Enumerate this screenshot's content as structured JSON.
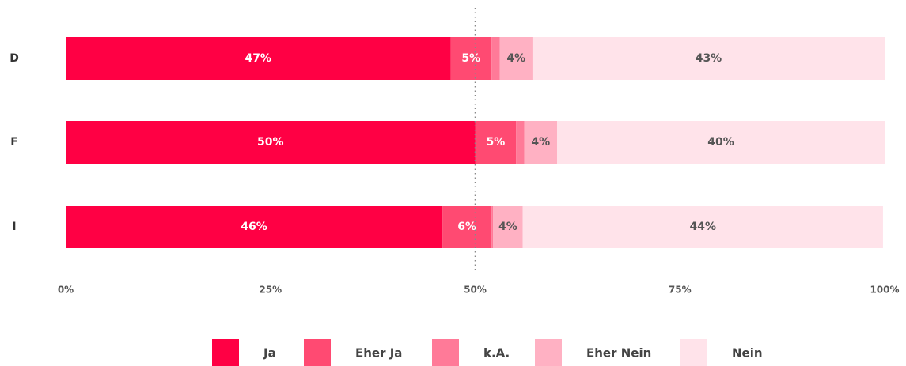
{
  "chart_data": {
    "type": "stacked_bar_horizontal",
    "categories": [
      "D",
      "F",
      "I"
    ],
    "series": [
      {
        "name": "Ja",
        "color": "#ff0044",
        "values": [
          47,
          50,
          46
        ],
        "value_labels": [
          "47%",
          "50%",
          "46%"
        ]
      },
      {
        "name": "Eher Ja",
        "color": "#ff4a72",
        "values": [
          5,
          5,
          6
        ],
        "value_labels": [
          "5%",
          "5%",
          "6%"
        ]
      },
      {
        "name": "k.A.",
        "color": "#ff7a98",
        "values": [
          1,
          1,
          0.2
        ],
        "value_labels": [
          null,
          null,
          null
        ]
      },
      {
        "name": "Eher Nein",
        "color": "#ffb1c3",
        "values": [
          4,
          4,
          3.6
        ],
        "value_labels": [
          "4%",
          "4%",
          "4%"
        ]
      },
      {
        "name": "Nein",
        "color": "#ffe3ea",
        "values": [
          43,
          40,
          44
        ],
        "value_labels": [
          "43%",
          "40%",
          "44%"
        ]
      }
    ],
    "xlim": [
      0,
      100
    ],
    "xticks": [
      {
        "value": 0,
        "label": "0%"
      },
      {
        "value": 25,
        "label": "25%"
      },
      {
        "value": 50,
        "label": "50%"
      },
      {
        "value": 75,
        "label": "75%"
      },
      {
        "value": 100,
        "label": "100%"
      }
    ],
    "reference_line": 50,
    "legend": "bottom"
  }
}
